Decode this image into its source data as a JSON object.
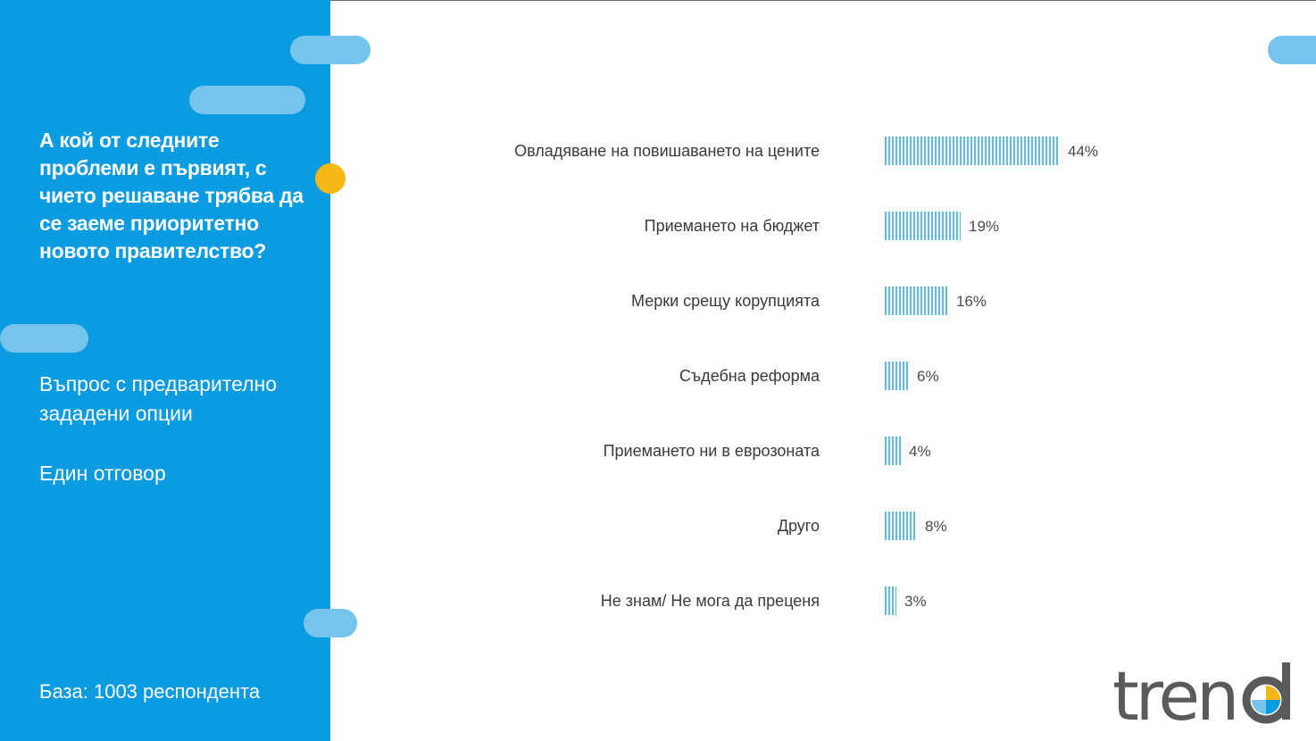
{
  "sidebar": {
    "question": "А кой от следните проблеми е първият, с чието решаване трябва да се заеме приоритетно новото правителство?",
    "question_type": "Въпрос с предварително зададени опции",
    "answer_type": "Един отговор",
    "base": "База: 1003 респондента"
  },
  "brand": {
    "logo_text": "trend",
    "accent": "#0a9be0",
    "bar_color": "#5cbbe6",
    "dot_color": "#f7b717"
  },
  "chart_data": {
    "type": "bar",
    "orientation": "horizontal",
    "categories": [
      "Овладяване на повишаването на цените",
      "Приемането на бюджет",
      "Мерки срещу корупцията",
      "Съдебна реформа",
      "Приемането ни в еврозоната",
      "Друго",
      "Не знам/ Не мога да преценя"
    ],
    "values": [
      44,
      19,
      16,
      6,
      4,
      8,
      3
    ],
    "value_labels": [
      "44%",
      "19%",
      "16%",
      "6%",
      "4%",
      "8%",
      "3%"
    ],
    "unit": "%",
    "grid": false,
    "legend": "none"
  }
}
